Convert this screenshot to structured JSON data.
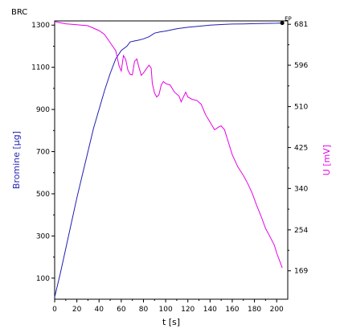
{
  "chart_data": {
    "type": "line",
    "title": "BRC",
    "xlabel": "t [s]",
    "ylabel_left": "Bromine [µg]",
    "ylabel_right": "U [mV]",
    "endpoint_label": "EP",
    "xlim": [
      0,
      210
    ],
    "ylim_left": [
      0,
      1320
    ],
    "ylim_right": [
      110,
      688
    ],
    "x_ticks": [
      "0",
      "20",
      "40",
      "60",
      "80",
      "100",
      "120",
      "140",
      "160",
      "180",
      "200"
    ],
    "y_ticks_left": [
      "100",
      "300",
      "500",
      "700",
      "900",
      "1100",
      "1300"
    ],
    "y_ticks_right": [
      "169",
      "254",
      "340",
      "425",
      "510",
      "596",
      "681"
    ],
    "colors": {
      "bromine": "#1f1fb4",
      "voltage": "#e600e6",
      "axis": "#000000"
    },
    "series": [
      {
        "name": "Bromine",
        "axis": "left",
        "color": "#1f1fb4",
        "points": [
          [
            0,
            10
          ],
          [
            5,
            120
          ],
          [
            10,
            240
          ],
          [
            15,
            360
          ],
          [
            20,
            480
          ],
          [
            25,
            590
          ],
          [
            30,
            700
          ],
          [
            35,
            810
          ],
          [
            40,
            900
          ],
          [
            45,
            990
          ],
          [
            50,
            1070
          ],
          [
            55,
            1140
          ],
          [
            60,
            1180
          ],
          [
            65,
            1200
          ],
          [
            68,
            1220
          ],
          [
            72,
            1225
          ],
          [
            75,
            1228
          ],
          [
            80,
            1235
          ],
          [
            85,
            1245
          ],
          [
            90,
            1262
          ],
          [
            95,
            1268
          ],
          [
            100,
            1272
          ],
          [
            110,
            1283
          ],
          [
            120,
            1290
          ],
          [
            130,
            1295
          ],
          [
            140,
            1300
          ],
          [
            150,
            1303
          ],
          [
            160,
            1305
          ],
          [
            170,
            1306
          ],
          [
            180,
            1307
          ],
          [
            190,
            1308
          ],
          [
            200,
            1309
          ],
          [
            205,
            1310
          ]
        ]
      },
      {
        "name": "U",
        "axis": "right",
        "color": "#e600e6",
        "points": [
          [
            0,
            687
          ],
          [
            3,
            685
          ],
          [
            10,
            682
          ],
          [
            20,
            680
          ],
          [
            30,
            678
          ],
          [
            35,
            673
          ],
          [
            40,
            668
          ],
          [
            45,
            660
          ],
          [
            50,
            643
          ],
          [
            55,
            626
          ],
          [
            58,
            595
          ],
          [
            60,
            584
          ],
          [
            62,
            616
          ],
          [
            64,
            608
          ],
          [
            66,
            586
          ],
          [
            68,
            577
          ],
          [
            70,
            576
          ],
          [
            72,
            604
          ],
          [
            74,
            609
          ],
          [
            76,
            591
          ],
          [
            78,
            575
          ],
          [
            80,
            580
          ],
          [
            83,
            590
          ],
          [
            85,
            596
          ],
          [
            87,
            590
          ],
          [
            88,
            558
          ],
          [
            90,
            538
          ],
          [
            92,
            530
          ],
          [
            94,
            535
          ],
          [
            96,
            555
          ],
          [
            98,
            562
          ],
          [
            100,
            558
          ],
          [
            104,
            555
          ],
          [
            108,
            540
          ],
          [
            112,
            532
          ],
          [
            114,
            520
          ],
          [
            116,
            530
          ],
          [
            118,
            540
          ],
          [
            120,
            530
          ],
          [
            124,
            525
          ],
          [
            128,
            523
          ],
          [
            132,
            515
          ],
          [
            136,
            493
          ],
          [
            140,
            478
          ],
          [
            144,
            462
          ],
          [
            148,
            468
          ],
          [
            150,
            470
          ],
          [
            153,
            462
          ],
          [
            156,
            440
          ],
          [
            160,
            410
          ],
          [
            165,
            385
          ],
          [
            170,
            367
          ],
          [
            174,
            350
          ],
          [
            178,
            330
          ],
          [
            182,
            305
          ],
          [
            186,
            282
          ],
          [
            190,
            257
          ],
          [
            194,
            240
          ],
          [
            198,
            222
          ],
          [
            200,
            206
          ],
          [
            203,
            188
          ],
          [
            205,
            175
          ]
        ]
      }
    ],
    "endpoint": {
      "x": 205,
      "y": 1310,
      "axis": "left"
    }
  }
}
